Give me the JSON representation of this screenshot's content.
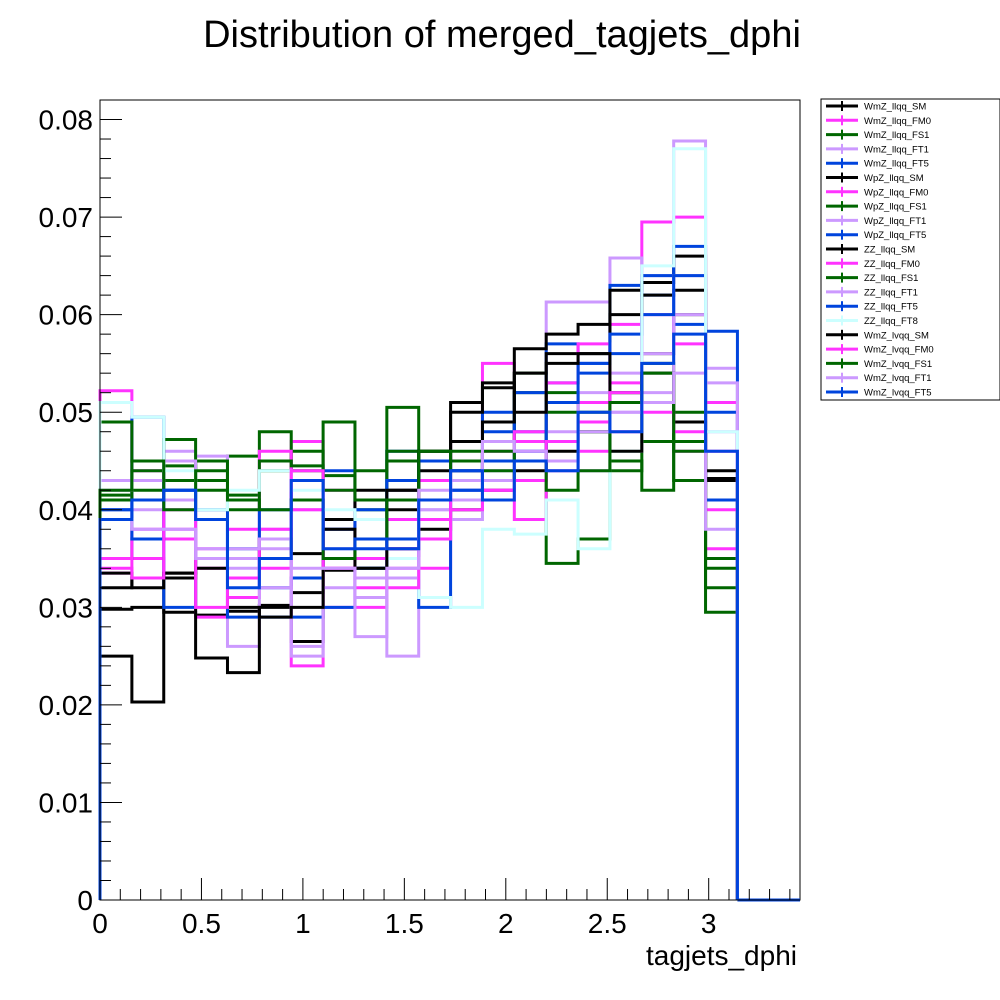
{
  "chart_data": {
    "type": "step histogram",
    "title": "Distribution of merged_tagjets_dphi",
    "xlabel": "tagjets_dphi",
    "ylabel": "",
    "xlim": [
      0,
      3.45
    ],
    "ylim": [
      0,
      0.082
    ],
    "grid": false,
    "legend_position": "right",
    "x_ticks": [
      0,
      0.5,
      1,
      1.5,
      2,
      2.5,
      3
    ],
    "x_tick_labels": [
      "0",
      "0.5",
      "1",
      "1.5",
      "2",
      "2.5",
      "3"
    ],
    "y_ticks": [
      0,
      0.01,
      0.02,
      0.03,
      0.04,
      0.05,
      0.06,
      0.07,
      0.08
    ],
    "y_tick_labels": [
      "0",
      "0.01",
      "0.02",
      "0.03",
      "0.04",
      "0.05",
      "0.06",
      "0.07",
      "0.08"
    ],
    "bin_edges": [
      0,
      0.1571,
      0.3142,
      0.4712,
      0.6283,
      0.7854,
      0.9425,
      1.0996,
      1.2566,
      1.4137,
      1.5708,
      1.7279,
      1.885,
      2.042,
      2.1991,
      2.3562,
      2.5133,
      2.6704,
      2.8274,
      2.9845,
      3.1416
    ],
    "series": [
      {
        "name": "WmZ_llqq_SM",
        "color": "#000000",
        "values": [
          0.0298,
          0.03,
          0.0295,
          0.0292,
          0.0296,
          0.0302,
          0.0315,
          0.0338,
          0.034,
          0.036,
          0.038,
          0.04,
          0.042,
          0.044,
          0.046,
          0.048,
          0.052,
          0.056,
          0.06,
          0.043
        ]
      },
      {
        "name": "WmZ_llqq_FM0",
        "color": "#ff33ff",
        "values": [
          0.0522,
          0.044,
          0.038,
          0.029,
          0.031,
          0.034,
          0.047,
          0.03,
          0.033,
          0.034,
          0.034,
          0.047,
          0.055,
          0.047,
          0.044,
          0.051,
          0.059,
          0.0695,
          0.07,
          0.036
        ]
      },
      {
        "name": "WmZ_llqq_FS1",
        "color": "#006600",
        "values": [
          0.0415,
          0.042,
          0.0445,
          0.043,
          0.0455,
          0.048,
          0.044,
          0.049,
          0.04,
          0.0505,
          0.046,
          0.045,
          0.047,
          0.054,
          0.0345,
          0.037,
          0.045,
          0.042,
          0.05,
          0.0295
        ]
      },
      {
        "name": "WmZ_llqq_FT1",
        "color": "#cc99ff",
        "values": [
          0.043,
          0.04,
          0.046,
          0.0455,
          0.026,
          0.038,
          0.04,
          0.038,
          0.035,
          0.025,
          0.04,
          0.042,
          0.044,
          0.046,
          0.0613,
          0.0613,
          0.0658,
          0.064,
          0.0778,
          0.0545
        ]
      },
      {
        "name": "WmZ_llqq_FT5",
        "color": "#0044dd",
        "values": [
          0.04,
          0.0495,
          0.042,
          0.04,
          0.035,
          0.032,
          0.033,
          0.044,
          0.036,
          0.046,
          0.043,
          0.042,
          0.05,
          0.048,
          0.057,
          0.054,
          0.063,
          0.062,
          0.059,
          0.0583
        ]
      },
      {
        "name": "WpZ_llqq_SM",
        "color": "#000000",
        "values": [
          0.025,
          0.0203,
          0.0335,
          0.0248,
          0.0233,
          0.03,
          0.0265,
          0.035,
          0.039,
          0.04,
          0.045,
          0.05,
          0.0525,
          0.0565,
          0.058,
          0.059,
          0.0625,
          0.0633,
          0.066,
          0.0432
        ]
      },
      {
        "name": "WpZ_llqq_FM0",
        "color": "#ff33ff",
        "values": [
          0.0335,
          0.035,
          0.033,
          0.034,
          0.033,
          0.038,
          0.024,
          0.042,
          0.03,
          0.039,
          0.043,
          0.044,
          0.042,
          0.039,
          0.045,
          0.046,
          0.048,
          0.047,
          0.046,
          0.051
        ]
      },
      {
        "name": "WpZ_llqq_FS1",
        "color": "#006600",
        "values": [
          0.049,
          0.045,
          0.0472,
          0.042,
          0.0415,
          0.044,
          0.046,
          0.042,
          0.044,
          0.046,
          0.045,
          0.044,
          0.043,
          0.052,
          0.05,
          0.05,
          0.052,
          0.055,
          0.047,
          0.035
        ]
      },
      {
        "name": "WpZ_llqq_FT1",
        "color": "#cc99ff",
        "values": [
          0.039,
          0.037,
          0.041,
          0.035,
          0.034,
          0.036,
          0.025,
          0.032,
          0.033,
          0.042,
          0.04,
          0.041,
          0.043,
          0.045,
          0.048,
          0.044,
          0.05,
          0.052,
          0.06,
          0.048
        ]
      },
      {
        "name": "WpZ_llqq_FT5",
        "color": "#0044dd",
        "values": [
          0.035,
          0.037,
          0.03,
          0.039,
          0.029,
          0.029,
          0.029,
          0.03,
          0.034,
          0.037,
          0.03,
          0.042,
          0.048,
          0.052,
          0.053,
          0.055,
          0.056,
          0.064,
          0.067,
          0.05
        ]
      },
      {
        "name": "ZZ_llqq_SM",
        "color": "#000000",
        "values": [
          0.032,
          0.033,
          0.0335,
          0.035,
          0.035,
          0.037,
          0.0355,
          0.039,
          0.042,
          0.042,
          0.044,
          0.047,
          0.049,
          0.054,
          0.056,
          0.056,
          0.06,
          0.062,
          0.0625,
          0.041
        ]
      },
      {
        "name": "ZZ_llqq_FM0",
        "color": "#ff33ff",
        "values": [
          0.035,
          0.038,
          0.037,
          0.036,
          0.038,
          0.046,
          0.04,
          0.034,
          0.035,
          0.036,
          0.039,
          0.043,
          0.046,
          0.048,
          0.053,
          0.057,
          0.053,
          0.06,
          0.057,
          0.04
        ]
      },
      {
        "name": "ZZ_llqq_FS1",
        "color": "#006600",
        "values": [
          0.041,
          0.044,
          0.043,
          0.045,
          0.04,
          0.045,
          0.0445,
          0.0435,
          0.041,
          0.045,
          0.046,
          0.046,
          0.044,
          0.043,
          0.052,
          0.048,
          0.044,
          0.047,
          0.046,
          0.032
        ]
      },
      {
        "name": "ZZ_llqq_FT1",
        "color": "#cc99ff",
        "values": [
          0.042,
          0.043,
          0.045,
          0.036,
          0.035,
          0.032,
          0.026,
          0.036,
          0.027,
          0.033,
          0.037,
          0.039,
          0.041,
          0.043,
          0.044,
          0.052,
          0.054,
          0.056,
          0.064,
          0.053
        ]
      },
      {
        "name": "ZZ_llqq_FT5",
        "color": "#0044dd",
        "values": [
          0.04,
          0.037,
          0.042,
          0.039,
          0.036,
          0.04,
          0.041,
          0.038,
          0.04,
          0.043,
          0.045,
          0.044,
          0.045,
          0.046,
          0.051,
          0.055,
          0.058,
          0.06,
          0.064,
          0.041
        ]
      },
      {
        "name": "ZZ_llqq_FT8",
        "color": "#ccffff",
        "values": [
          0.051,
          0.0495,
          0.044,
          0.04,
          0.042,
          0.044,
          0.042,
          0.04,
          0.039,
          0.035,
          0.031,
          0.03,
          0.038,
          0.0375,
          0.041,
          0.036,
          0.046,
          0.065,
          0.077,
          0.048
        ]
      },
      {
        "name": "WmZ_lvqq_SM",
        "color": "#000000",
        "values": [
          0.0335,
          0.032,
          0.033,
          0.034,
          0.03,
          0.029,
          0.03,
          0.038,
          0.034,
          0.042,
          0.046,
          0.051,
          0.053,
          0.05,
          0.055,
          0.056,
          0.046,
          0.054,
          0.049,
          0.044
        ]
      },
      {
        "name": "WmZ_lvqq_FM0",
        "color": "#ff33ff",
        "values": [
          0.034,
          0.033,
          0.04,
          0.03,
          0.033,
          0.037,
          0.044,
          0.034,
          0.032,
          0.032,
          0.037,
          0.04,
          0.042,
          0.043,
          0.047,
          0.049,
          0.052,
          0.05,
          0.048,
          0.046
        ]
      },
      {
        "name": "WmZ_lvqq_FS1",
        "color": "#006600",
        "values": [
          0.042,
          0.045,
          0.04,
          0.044,
          0.041,
          0.04,
          0.041,
          0.035,
          0.037,
          0.041,
          0.046,
          0.043,
          0.046,
          0.045,
          0.042,
          0.044,
          0.051,
          0.054,
          0.043,
          0.034
        ]
      },
      {
        "name": "WmZ_lvqq_FT1",
        "color": "#cc99ff",
        "values": [
          0.039,
          0.038,
          0.038,
          0.035,
          0.036,
          0.037,
          0.034,
          0.034,
          0.031,
          0.034,
          0.042,
          0.043,
          0.047,
          0.046,
          0.045,
          0.048,
          0.05,
          0.051,
          0.054,
          0.038
        ]
      },
      {
        "name": "WmZ_lvqq_FT5",
        "color": "#0044dd",
        "values": [
          0.039,
          0.041,
          0.042,
          0.039,
          0.032,
          0.035,
          0.043,
          0.036,
          0.037,
          0.036,
          0.041,
          0.044,
          0.041,
          0.045,
          0.044,
          0.05,
          0.048,
          0.055,
          0.058,
          0.046
        ]
      }
    ]
  }
}
